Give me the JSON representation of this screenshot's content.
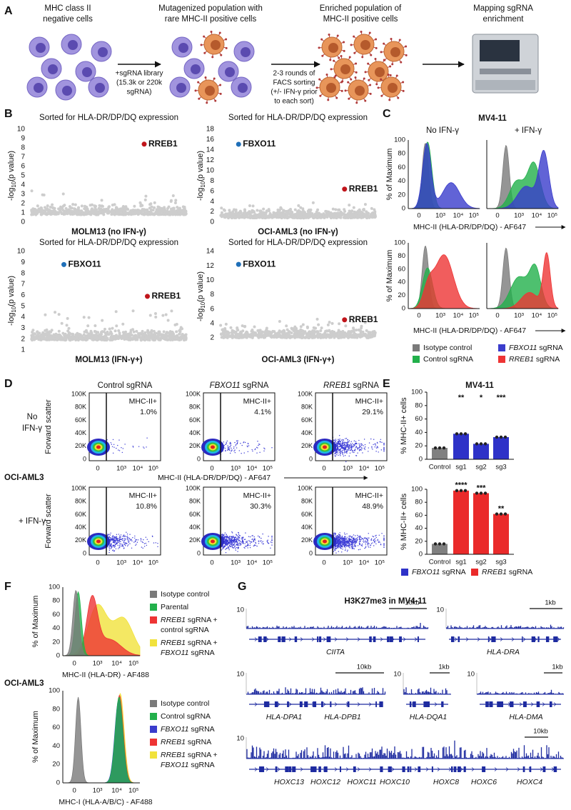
{
  "panel_a": {
    "label": "A",
    "steps": [
      [
        "MHC class II",
        "negative cells"
      ],
      [
        "Mutagenized population with",
        "rare MHC-II positive cells"
      ],
      [
        "Enriched population of",
        "MHC-II positive cells"
      ],
      [
        "Mapping sgRNA",
        "enrichment"
      ]
    ],
    "library_note": [
      "+sgRNA library",
      "(15.3k or 220k",
      "sgRNA)"
    ],
    "sort_note": [
      "2-3 rounds of",
      "FACS sorting",
      "(+/- IFN-γ prior",
      "to each sort)"
    ]
  },
  "panel_b": {
    "label": "B",
    "y_label": [
      "-log",
      "10",
      "(p value)"
    ],
    "plots": [
      {
        "title": "Sorted for HLA-DR/DP/DQ expression",
        "x_label": "MOLM13 (no IFN-γ)",
        "ylim": [
          0,
          10
        ],
        "yticks": [
          0,
          1,
          2,
          3,
          4,
          5,
          6,
          7,
          8,
          9,
          10
        ],
        "hits": [
          {
            "gene": "RREB1",
            "value": 8.4,
            "color": "#c0151b"
          }
        ]
      },
      {
        "title": "Sorted for HLA-DR/DP/DQ expression",
        "x_label": "OCI-AML3 (no IFN-γ)",
        "ylim": [
          0,
          18
        ],
        "yticks": [
          0,
          2,
          4,
          6,
          8,
          10,
          12,
          14,
          16,
          18
        ],
        "hits": [
          {
            "gene": "FBXO11",
            "value": 15.1,
            "color": "#1f6fb8"
          },
          {
            "gene": "RREB1",
            "value": 6.4,
            "color": "#c0151b"
          }
        ]
      },
      {
        "title": "Sorted for HLA-DR/DP/DQ expression",
        "x_label": "MOLM13 (IFN-γ+)",
        "ylim": [
          1,
          10
        ],
        "yticks": [
          1,
          2,
          3,
          4,
          5,
          6,
          7,
          8,
          9,
          10
        ],
        "hits": [
          {
            "gene": "FBXO11",
            "value": 8.8,
            "color": "#1f6fb8"
          },
          {
            "gene": "RREB1",
            "value": 5.9,
            "color": "#c0151b"
          }
        ]
      },
      {
        "title": "Sorted for HLA-DR/DP/DQ expression",
        "x_label": "OCI-AML3 (IFN-γ+)",
        "ylim": [
          1.5,
          14
        ],
        "yticks": [
          2,
          4,
          6,
          8,
          10,
          12,
          14
        ],
        "hits": [
          {
            "gene": "FBXO11",
            "value": 12.2,
            "color": "#1f6fb8"
          },
          {
            "gene": "RREB1",
            "value": 4.5,
            "color": "#c0151b"
          }
        ]
      }
    ]
  },
  "panel_c": {
    "label": "C",
    "cell_line": "MV4-11",
    "conditions": [
      "No IFN-γ",
      "+ IFN-γ"
    ],
    "y_label": "% of Maximum",
    "yticks": [
      0,
      20,
      40,
      60,
      80,
      100
    ],
    "xticks": [
      "0",
      "10³",
      "10⁴",
      "10⁵"
    ],
    "x_label": "MHC-II (HLA-DR/DP/DQ) - AF647",
    "legend": [
      {
        "lines": [
          [
            {
              "text": "Isotype control"
            }
          ]
        ],
        "color": "#7a7a7a"
      },
      {
        "lines": [
          [
            {
              "text": "Control sgRNA"
            }
          ]
        ],
        "color": "#22b04b"
      },
      {
        "lines": [
          [
            {
              "text": "FBXO11",
              "italic": true
            },
            {
              "text": " sgRNA"
            }
          ]
        ],
        "color": "#3a3ccc"
      },
      {
        "lines": [
          [
            {
              "text": "RREB1",
              "italic": true
            },
            {
              "text": " sgRNA"
            }
          ]
        ],
        "color": "#ee3434"
      }
    ]
  },
  "panel_d": {
    "label": "D",
    "columns": [
      [
        {
          "text": "Control sgRNA"
        }
      ],
      [
        {
          "text": "FBXO11",
          "italic": true
        },
        {
          "text": " sgRNA"
        }
      ],
      [
        {
          "text": "RREB1",
          "italic": true
        },
        {
          "text": " sgRNA"
        }
      ]
    ],
    "rows": [
      {
        "label": [
          "No",
          "IFN-γ"
        ],
        "gates": [
          "1.0%",
          "4.1%",
          "29.1%"
        ]
      },
      {
        "label": [
          "+ IFN-γ"
        ],
        "gates": [
          "10.8%",
          "30.3%",
          "48.9%"
        ]
      }
    ],
    "gate_label": "MHC-II+",
    "y_label": "Forward scatter",
    "yticks": [
      "0",
      "20K",
      "40K",
      "60K",
      "80K",
      "100K"
    ],
    "xticks": [
      "0",
      "10³",
      "10⁴",
      "10⁵"
    ],
    "cell_line": "OCI-AML3",
    "x_label": "MHC-II (HLA-DR/DP/DQ) - AF647"
  },
  "panel_e": {
    "label": "E",
    "cell_line": "MV4-11",
    "y_label": "% MHC-II+ cells",
    "categories": [
      "Control",
      "sg1",
      "sg2",
      "sg3"
    ],
    "ylim": [
      0,
      100
    ],
    "yticks": [
      0,
      20,
      40,
      60,
      80,
      100
    ],
    "charts": [
      {
        "values": [
          17,
          38,
          23,
          33
        ],
        "colors": [
          "#808080",
          "#2e32c8",
          "#2e32c8",
          "#2e32c8"
        ],
        "significance": [
          null,
          "**",
          "*",
          "***"
        ]
      },
      {
        "values": [
          16,
          98,
          94,
          62
        ],
        "colors": [
          "#808080",
          "#ea2a2a",
          "#ea2a2a",
          "#ea2a2a"
        ],
        "significance": [
          null,
          "****",
          "***",
          "**"
        ]
      }
    ],
    "legend": [
      {
        "segments": [
          {
            "text": "FBXO11",
            "italic": true
          },
          {
            "text": " sgRNA"
          }
        ],
        "color": "#2e32c8"
      },
      {
        "segments": [
          {
            "text": "RREB1",
            "italic": true
          },
          {
            "text": " sgRNA"
          }
        ],
        "color": "#ea2a2a"
      }
    ]
  },
  "panel_f": {
    "label": "F",
    "y_label": "% of Maximum",
    "yticks": [
      0,
      20,
      40,
      60,
      80,
      100
    ],
    "xticks": [
      "0",
      "10³",
      "10⁴",
      "10⁵"
    ],
    "cell_line": "OCI-AML3",
    "plots": [
      {
        "x_label": "MHC-II (HLA-DR) - AF488",
        "legend": [
          {
            "lines": [
              [
                {
                  "text": "Isotype control"
                }
              ]
            ],
            "color": "#7a7a7a"
          },
          {
            "lines": [
              [
                {
                  "text": "Parental"
                }
              ]
            ],
            "color": "#22b04b"
          },
          {
            "lines": [
              [
                {
                  "text": "RREB1",
                  "italic": true
                },
                {
                  "text": " sgRNA +"
                }
              ],
              [
                {
                  "text": "control sgRNA"
                }
              ]
            ],
            "color": "#ee3434"
          },
          {
            "lines": [
              [
                {
                  "text": "RREB1",
                  "italic": true
                },
                {
                  "text": " sgRNA +"
                }
              ],
              [
                {
                  "text": "FBXO11",
                  "italic": true
                },
                {
                  "text": " sgRNA"
                }
              ]
            ],
            "color": "#f1e23c"
          }
        ]
      },
      {
        "x_label": "MHC-I (HLA-A/B/C) - AF488",
        "legend": [
          {
            "lines": [
              [
                {
                  "text": "Isotype control"
                }
              ]
            ],
            "color": "#7a7a7a"
          },
          {
            "lines": [
              [
                {
                  "text": "Control sgRNA"
                }
              ]
            ],
            "color": "#22b04b"
          },
          {
            "lines": [
              [
                {
                  "text": "FBXO11",
                  "italic": true
                },
                {
                  "text": " sgRNA"
                }
              ]
            ],
            "color": "#3a3ccc"
          },
          {
            "lines": [
              [
                {
                  "text": "RREB1",
                  "italic": true
                },
                {
                  "text": " sgRNA"
                }
              ]
            ],
            "color": "#ee3434"
          },
          {
            "lines": [
              [
                {
                  "text": "RREB1",
                  "italic": true
                },
                {
                  "text": " sgRNA +"
                }
              ],
              [
                {
                  "text": "FBXO11",
                  "italic": true
                },
                {
                  "text": " sgRNA"
                }
              ]
            ],
            "color": "#f1e23c"
          }
        ]
      }
    ]
  },
  "panel_g": {
    "label": "G",
    "title": "H3K27me3 in MV4-11",
    "tracks": [
      {
        "scale": 10,
        "bar": "10kb",
        "genes": [
          "CIITA"
        ]
      },
      {
        "scale": 10,
        "bar": "1kb",
        "genes": [
          "HLA-DRA"
        ]
      },
      {
        "scale": 10,
        "bar": "10kb",
        "genes": [
          "HLA-DPA1",
          "HLA-DPB1"
        ]
      },
      {
        "scale": 10,
        "bar": "1kb",
        "genes": [
          "HLA-DQA1"
        ]
      },
      {
        "scale": 10,
        "bar": "1kb",
        "genes": [
          "HLA-DMA"
        ]
      },
      {
        "scale": 10,
        "bar": "10kb",
        "genes": [
          "HOXC13",
          "HOXC12",
          "HOXC11",
          "HOXC10",
          "HOXC8",
          "HOXC6",
          "HOXC4"
        ]
      }
    ]
  }
}
